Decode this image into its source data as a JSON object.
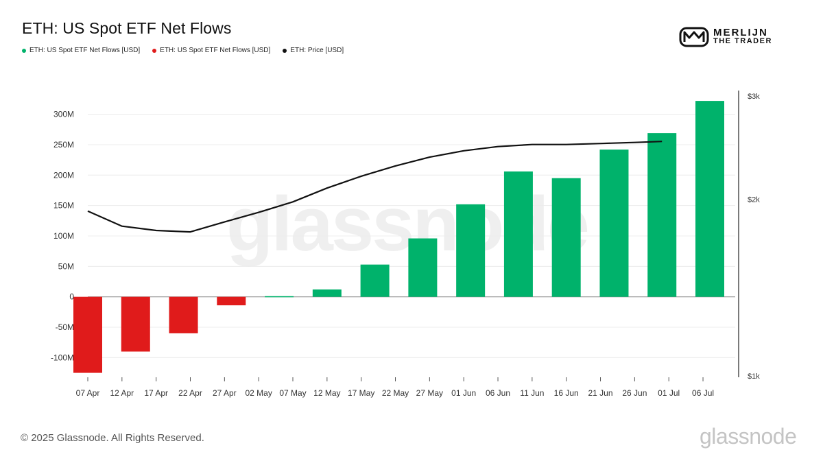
{
  "page": {
    "logo_line1": "MERLIJN",
    "logo_line2": "THE TRADER",
    "watermark": "glassnode",
    "copyright": "© 2025 Glassnode. All Rights Reserved.",
    "brand_footer": "glassnode"
  },
  "chart_data": {
    "type": "bar",
    "title": "ETH: US Spot ETF Net Flows",
    "legend": [
      {
        "label": "ETH: US Spot ETF Net Flows [USD]",
        "color": "#00b26b"
      },
      {
        "label": "ETH: US Spot ETF Net Flows [USD]",
        "color": "#e01b1b"
      },
      {
        "label": "ETH: Price [USD]",
        "color": "#111111"
      }
    ],
    "colors": {
      "positive": "#00b26b",
      "negative": "#e01b1b",
      "price": "#111111"
    },
    "x": [
      "2025-04-07",
      "2025-04-14",
      "2025-04-21",
      "2025-04-28",
      "2025-05-05",
      "2025-05-12",
      "2025-05-19",
      "2025-05-26",
      "2025-06-02",
      "2025-06-09",
      "2025-06-16",
      "2025-06-23",
      "2025-06-30",
      "2025-07-07"
    ],
    "x_ticks": [
      "07 Apr",
      "12 Apr",
      "17 Apr",
      "22 Apr",
      "27 Apr",
      "02 May",
      "07 May",
      "12 May",
      "17 May",
      "22 May",
      "27 May",
      "01 Jun",
      "06 Jun",
      "11 Jun",
      "16 Jun",
      "21 Jun",
      "26 Jun",
      "01 Jul",
      "06 Jul"
    ],
    "series": [
      {
        "name": "ETH: US Spot ETF Net Flows [USD]",
        "axis": "left",
        "values": [
          -125000000,
          -90000000,
          -60000000,
          -14000000,
          1000000,
          12000000,
          53000000,
          96000000,
          152000000,
          206000000,
          195000000,
          242000000,
          269000000,
          322000000
        ]
      },
      {
        "name": "ETH: Price [USD]",
        "axis": "right",
        "type": "line",
        "x": [
          "2025-04-07",
          "2025-04-12",
          "2025-04-17",
          "2025-04-22",
          "2025-04-27",
          "2025-05-02",
          "2025-05-07",
          "2025-05-12",
          "2025-05-17",
          "2025-05-22",
          "2025-05-27",
          "2025-06-01",
          "2025-06-06",
          "2025-06-11",
          "2025-06-16",
          "2025-06-21",
          "2025-06-26",
          "2025-06-30"
        ],
        "values": [
          1910,
          1800,
          1770,
          1760,
          1830,
          1900,
          1980,
          2090,
          2190,
          2280,
          2360,
          2420,
          2460,
          2480,
          2480,
          2490,
          2500,
          2510
        ]
      }
    ],
    "yaxis_left": {
      "ylim": [
        -130000000,
        330000000
      ],
      "ticks": [
        -100000000,
        -50000000,
        0,
        50000000,
        100000000,
        150000000,
        200000000,
        250000000,
        300000000
      ],
      "tick_labels": [
        "-100M",
        "-50M",
        "0",
        "50M",
        "100M",
        "150M",
        "200M",
        "250M",
        "300M"
      ]
    },
    "yaxis_right": {
      "scale": "log",
      "ylim": [
        1000,
        3000
      ],
      "ticks": [
        1000,
        2000,
        3000
      ],
      "tick_labels": [
        "$1k",
        "$2k",
        "$3k"
      ]
    },
    "grid": true
  }
}
